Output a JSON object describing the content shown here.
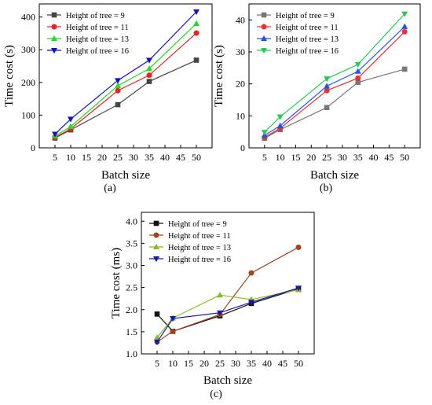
{
  "chart_data": [
    {
      "type": "line",
      "label": "(a)",
      "xlabel": "Batch size",
      "ylabel": "Time cost (s)",
      "x": [
        5,
        10,
        25,
        35,
        50
      ],
      "xticks": [
        5,
        10,
        15,
        20,
        25,
        30,
        35,
        40,
        45,
        50
      ],
      "yticks": [
        0,
        100,
        200,
        300,
        400
      ],
      "ylim": [
        0,
        440
      ],
      "legend_position": "top-left",
      "series": [
        {
          "name": "Height of tree = 9",
          "color": "#444444",
          "marker": "square",
          "values": [
            30,
            55,
            132,
            203,
            268
          ]
        },
        {
          "name": "Height of tree = 11",
          "color": "#f02020",
          "marker": "circle",
          "values": [
            32,
            58,
            175,
            222,
            351
          ]
        },
        {
          "name": "Height of tree = 13",
          "color": "#22dd22",
          "marker": "triangle-up",
          "values": [
            36,
            65,
            190,
            242,
            380
          ]
        },
        {
          "name": "Height of tree = 16",
          "color": "#1010cc",
          "marker": "triangle-down",
          "values": [
            42,
            88,
            206,
            268,
            416
          ]
        }
      ]
    },
    {
      "type": "line",
      "label": "(b)",
      "xlabel": "Batch size",
      "ylabel": "Time cost (s)",
      "x": [
        5,
        10,
        25,
        35,
        50
      ],
      "xticks": [
        5,
        10,
        15,
        20,
        25,
        30,
        35,
        40,
        45,
        50
      ],
      "yticks": [
        0,
        10,
        20,
        30,
        40
      ],
      "ylim": [
        0,
        45
      ],
      "legend_position": "top-left",
      "series": [
        {
          "name": "Height of tree = 9",
          "color": "#777777",
          "marker": "square",
          "values": [
            3.0,
            5.7,
            12.6,
            20.5,
            24.6
          ]
        },
        {
          "name": "Height of tree = 11",
          "color": "#f03030",
          "marker": "circle",
          "values": [
            3.3,
            6.1,
            17.9,
            21.8,
            36.3
          ]
        },
        {
          "name": "Height of tree = 13",
          "color": "#2255ee",
          "marker": "triangle-up",
          "values": [
            3.9,
            6.9,
            19.3,
            23.9,
            37.9
          ]
        },
        {
          "name": "Height of tree = 16",
          "color": "#22cc55",
          "marker": "triangle-down",
          "values": [
            4.9,
            9.7,
            21.6,
            26.1,
            41.9
          ]
        }
      ]
    },
    {
      "type": "line",
      "label": "(c)",
      "xlabel": "Batch size",
      "ylabel": "Time cost (ms)",
      "x": [
        5,
        10,
        25,
        35,
        50
      ],
      "xticks": [
        5,
        10,
        15,
        20,
        25,
        30,
        35,
        40,
        45,
        50
      ],
      "yticks": [
        1.0,
        1.5,
        2.0,
        2.5,
        3.0,
        3.5,
        4.0
      ],
      "ytick_labels": [
        "1.0",
        "1.5",
        "2.0",
        "2.5",
        "3.0",
        "3.5",
        "4.0"
      ],
      "ylim": [
        1.0,
        4.2
      ],
      "legend_position": "top-left",
      "series": [
        {
          "name": "Height of tree = 9",
          "color": "#111111",
          "marker": "square",
          "values": [
            1.9,
            1.51,
            1.86,
            2.14,
            2.47
          ]
        },
        {
          "name": "Height of tree = 11",
          "color": "#a0451a",
          "marker": "circle",
          "values": [
            1.27,
            1.51,
            1.89,
            2.83,
            3.41
          ]
        },
        {
          "name": "Height of tree = 13",
          "color": "#88bb22",
          "marker": "triangle-up",
          "values": [
            1.37,
            1.81,
            2.33,
            2.23,
            2.45
          ]
        },
        {
          "name": "Height of tree = 16",
          "color": "#1a1aaa",
          "marker": "triangle-down",
          "values": [
            1.27,
            1.8,
            1.93,
            2.17,
            2.49
          ]
        }
      ]
    }
  ]
}
